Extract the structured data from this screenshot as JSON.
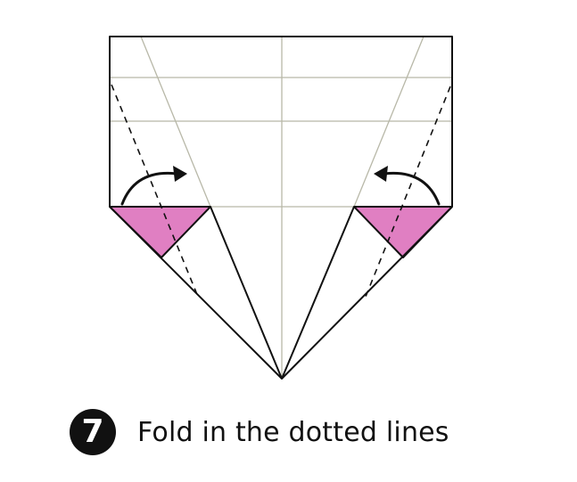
{
  "instruction": {
    "step_number": "7",
    "text": "Fold in the dotted lines"
  },
  "colors": {
    "flap_fill": "#e07fc2",
    "outline": "#111111",
    "crease": "#b8b8a8",
    "badge": "#111111"
  },
  "icons": {
    "left_arrow": "curved-arrow-right-icon",
    "right_arrow": "curved-arrow-left-icon"
  }
}
